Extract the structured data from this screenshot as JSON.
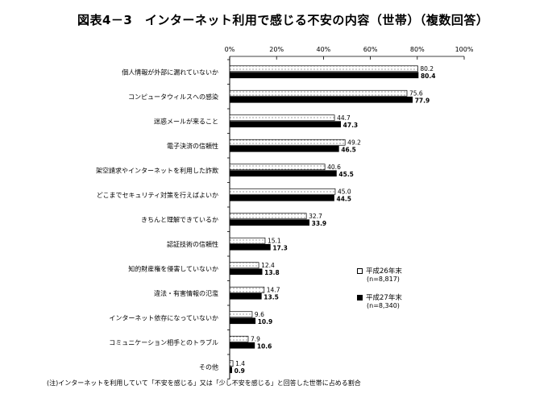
{
  "title": "図表4－3　インターネット利用で感じる不安の内容（世帯）（複数回答）",
  "note": "(注)インターネットを利用していて「不安を感じる」又は「少し不安を感じる」と回答した世帯に占める割合",
  "colors": {
    "series1_fill": "#ffffff",
    "series2_fill": "#000000",
    "axis": "#000000"
  },
  "chart_data": {
    "type": "bar",
    "orientation": "horizontal",
    "title": "図表4－3　インターネット利用で感じる不安の内容（世帯）（複数回答）",
    "xlim": [
      0,
      100
    ],
    "x_ticks": [
      "0%",
      "20%",
      "40%",
      "60%",
      "80%",
      "100%"
    ],
    "legend_position": "right",
    "categories": [
      "個人情報が外部に漏れていないか",
      "コンピュータウィルスへの感染",
      "迷惑メールが来ること",
      "電子決済の信頼性",
      "架空請求やインターネットを利用した詐欺",
      "どこまでセキュリティ対策を行えばよいか",
      "きちんと理解できているか",
      "認証技術の信頼性",
      "知的財産権を侵害していないか",
      "違法・有害情報の氾濫",
      "インターネット依存になっていないか",
      "コミュニケーション相手とのトラブル",
      "その他"
    ],
    "series": [
      {
        "name": "平成26年末",
        "n_label": "(n=8,817)",
        "values": [
          80.2,
          75.6,
          44.7,
          49.2,
          40.6,
          45.0,
          32.7,
          15.1,
          12.4,
          14.7,
          9.6,
          7.9,
          1.4
        ]
      },
      {
        "name": "平成27年末",
        "n_label": "(n=8,340)",
        "values": [
          80.4,
          77.9,
          47.3,
          46.5,
          45.5,
          44.5,
          33.9,
          17.3,
          13.8,
          13.5,
          10.9,
          10.6,
          0.9
        ]
      }
    ]
  }
}
